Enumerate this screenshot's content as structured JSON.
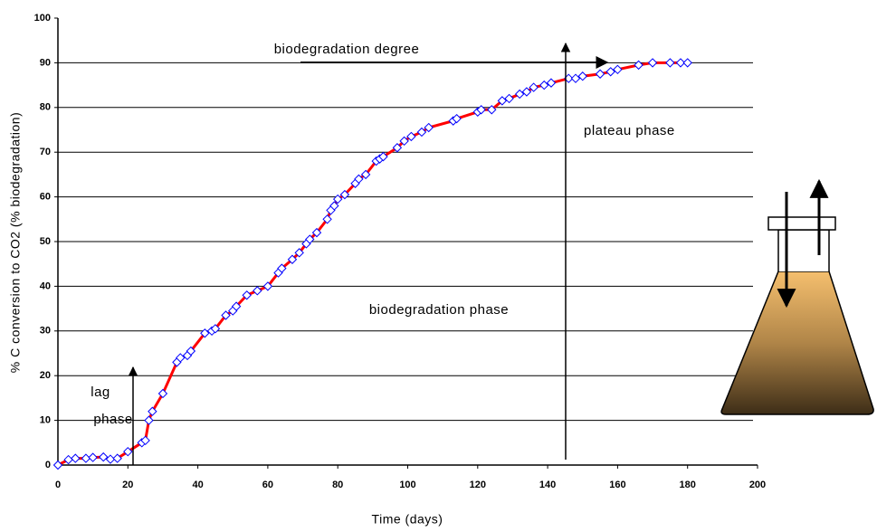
{
  "chart_data": {
    "type": "line",
    "x_label": "Time (days)",
    "y_label": "% C conversion to CO2 (% biodegradation)",
    "x": [
      0,
      3,
      5,
      8,
      10,
      13,
      15,
      17,
      20,
      24,
      25,
      26,
      27,
      30,
      34,
      35,
      37,
      38,
      42,
      44,
      45,
      48,
      50,
      51,
      54,
      57,
      60,
      63,
      64,
      67,
      69,
      71,
      72,
      74,
      77,
      78,
      79,
      80,
      82,
      85,
      86,
      88,
      91,
      92,
      93,
      97,
      99,
      101,
      104,
      106,
      113,
      114,
      120,
      121,
      124,
      127,
      129,
      132,
      134,
      136,
      139,
      141,
      146,
      148,
      150,
      155,
      158,
      160,
      166,
      170,
      175,
      178,
      180
    ],
    "values": [
      0,
      1.2,
      1.5,
      1.5,
      1.7,
      1.8,
      1.3,
      1.5,
      3,
      5,
      5.5,
      10,
      12,
      16,
      23,
      24,
      24.5,
      25.5,
      29.5,
      30,
      30.5,
      33.5,
      34.5,
      35.5,
      38,
      39,
      40,
      43,
      44,
      46,
      47.5,
      49.5,
      50.5,
      52,
      55,
      57,
      58,
      59.5,
      60.5,
      63,
      64,
      65,
      68,
      68.5,
      69,
      71,
      72.5,
      73.5,
      74.5,
      75.5,
      77,
      77.5,
      79,
      79.5,
      79.5,
      81.5,
      82,
      83,
      83.5,
      84.5,
      85,
      85.5,
      86.5,
      86.5,
      87,
      87.5,
      88,
      88.5,
      89.5,
      90,
      90,
      90,
      90
    ],
    "color": "#ff0000",
    "marker_color": "#0000ff",
    "xlim": [
      0,
      200
    ],
    "xticks": [
      0,
      20,
      40,
      60,
      80,
      100,
      120,
      140,
      160,
      180,
      200
    ],
    "ylim": [
      0,
      100
    ],
    "yticks": [
      0,
      10,
      20,
      30,
      40,
      50,
      60,
      70,
      80,
      90,
      100
    ],
    "grid": true,
    "annotations": [
      "biodegradation degree",
      "plateau phase",
      "biodegradation phase",
      "lag",
      "phase"
    ]
  }
}
